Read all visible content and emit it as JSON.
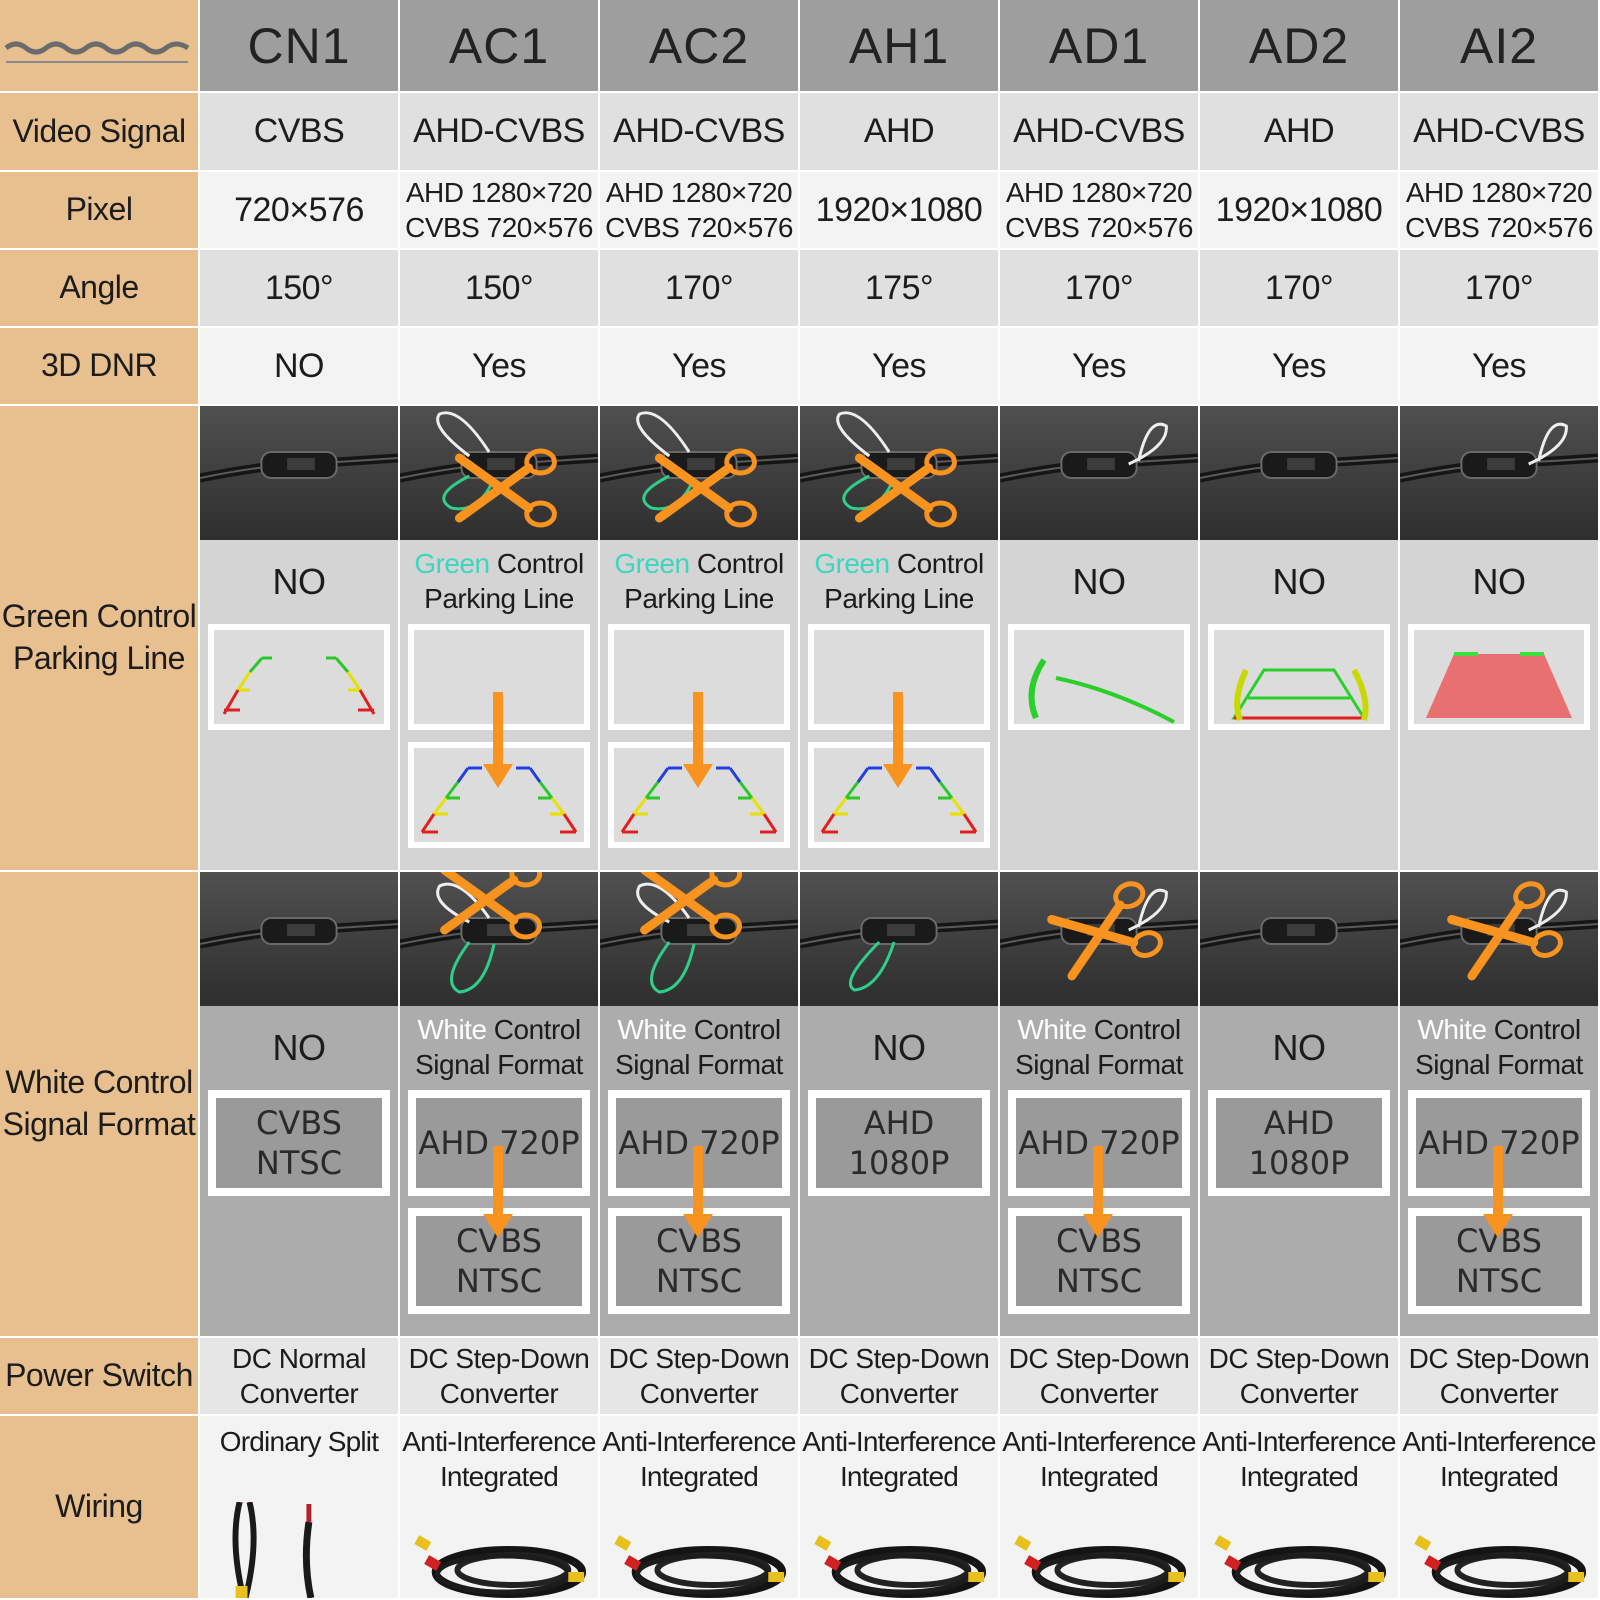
{
  "models": [
    "CN1",
    "AC1",
    "AC2",
    "AH1",
    "AD1",
    "AD2",
    "AI2"
  ],
  "labels": {
    "video_signal": "Video Signal",
    "pixel": "Pixel",
    "angle": "Angle",
    "dnr": "3D DNR",
    "green_1": "Green Control",
    "green_2": "Parking Line",
    "white_1": "White Control",
    "white_2": "Signal Format",
    "power": "Power Switch",
    "wiring": "Wiring"
  },
  "video_signal": [
    "CVBS",
    "AHD-CVBS",
    "AHD-CVBS",
    "AHD",
    "AHD-CVBS",
    "AHD",
    "AHD-CVBS"
  ],
  "pixel": [
    {
      "l1": "720×576"
    },
    {
      "l1": "AHD 1280×720",
      "l2": "CVBS 720×576"
    },
    {
      "l1": "AHD 1280×720",
      "l2": "CVBS 720×576"
    },
    {
      "l1": "1920×1080"
    },
    {
      "l1": "AHD 1280×720",
      "l2": "CVBS 720×576"
    },
    {
      "l1": "1920×1080"
    },
    {
      "l1": "AHD 1280×720",
      "l2": "CVBS 720×576"
    }
  ],
  "angle": [
    "150°",
    "150°",
    "170°",
    "175°",
    "170°",
    "170°",
    "170°"
  ],
  "dnr": [
    "NO",
    "Yes",
    "Yes",
    "Yes",
    "Yes",
    "Yes",
    "Yes"
  ],
  "green_control": [
    {
      "no": "NO",
      "guide": "classic"
    },
    {
      "kw": "Green",
      "rest": " Control",
      "l2": "Parking Line",
      "guide": "switch"
    },
    {
      "kw": "Green",
      "rest": " Control",
      "l2": "Parking Line",
      "guide": "switch"
    },
    {
      "kw": "Green",
      "rest": " Control",
      "l2": "Parking Line",
      "guide": "switch"
    },
    {
      "no": "NO",
      "guide": "dynamic"
    },
    {
      "no": "NO",
      "guide": "bracket"
    },
    {
      "no": "NO",
      "guide": "zone"
    }
  ],
  "white_control": [
    {
      "no": "NO",
      "top": [
        "CVBS",
        "NTSC"
      ]
    },
    {
      "kw": "White",
      "rest": " Control",
      "l2": "Signal Format",
      "top": [
        "AHD 720P"
      ],
      "bottom": [
        "CVBS",
        "NTSC"
      ]
    },
    {
      "kw": "White",
      "rest": " Control",
      "l2": "Signal Format",
      "top": [
        "AHD 720P"
      ],
      "bottom": [
        "CVBS",
        "NTSC"
      ]
    },
    {
      "no": "NO",
      "top": [
        "AHD",
        "1080P"
      ]
    },
    {
      "kw": "White",
      "rest": " Control",
      "l2": "Signal Format",
      "top": [
        "AHD 720P"
      ],
      "bottom": [
        "CVBS",
        "NTSC"
      ]
    },
    {
      "no": "NO",
      "top": [
        "AHD",
        "1080P"
      ]
    },
    {
      "kw": "White",
      "rest": " Control",
      "l2": "Signal Format",
      "top": [
        "AHD 720P"
      ],
      "bottom": [
        "CVBS",
        "NTSC"
      ]
    }
  ],
  "power": [
    {
      "l1": "DC Normal",
      "l2": "Converter"
    },
    {
      "l1": "DC Step-Down",
      "l2": "Converter"
    },
    {
      "l1": "DC Step-Down",
      "l2": "Converter"
    },
    {
      "l1": "DC Step-Down",
      "l2": "Converter"
    },
    {
      "l1": "DC Step-Down",
      "l2": "Converter"
    },
    {
      "l1": "DC Step-Down",
      "l2": "Converter"
    },
    {
      "l1": "DC Step-Down",
      "l2": "Converter"
    }
  ],
  "wiring": [
    {
      "l1": "Ordinary Split",
      "kind": "split"
    },
    {
      "l1": "Anti-Interference",
      "l2": "Integrated",
      "kind": "integrated"
    },
    {
      "l1": "Anti-Interference",
      "l2": "Integrated",
      "kind": "integrated"
    },
    {
      "l1": "Anti-Interference",
      "l2": "Integrated",
      "kind": "integrated"
    },
    {
      "l1": "Anti-Interference",
      "l2": "Integrated",
      "kind": "integrated"
    },
    {
      "l1": "Anti-Interference",
      "l2": "Integrated",
      "kind": "integrated"
    },
    {
      "l1": "Anti-Interference",
      "l2": "Integrated",
      "kind": "integrated"
    }
  ],
  "photos": {
    "green": [
      "plain",
      "loop-cut-green",
      "loop-cut-green",
      "loop-cut-green",
      "loop-white",
      "plain",
      "loop-white"
    ],
    "white": [
      "plain",
      "cut-white-green",
      "cut-white-green",
      "loop-green",
      "cut-white",
      "plain",
      "cut-white"
    ]
  },
  "colors": {
    "label_bg": "#e8c08f",
    "header_bg": "#9e9e9e",
    "accent_orange": "#f7931e",
    "keyword_green": "#3dd6c0",
    "keyword_white": "#ffffff"
  }
}
